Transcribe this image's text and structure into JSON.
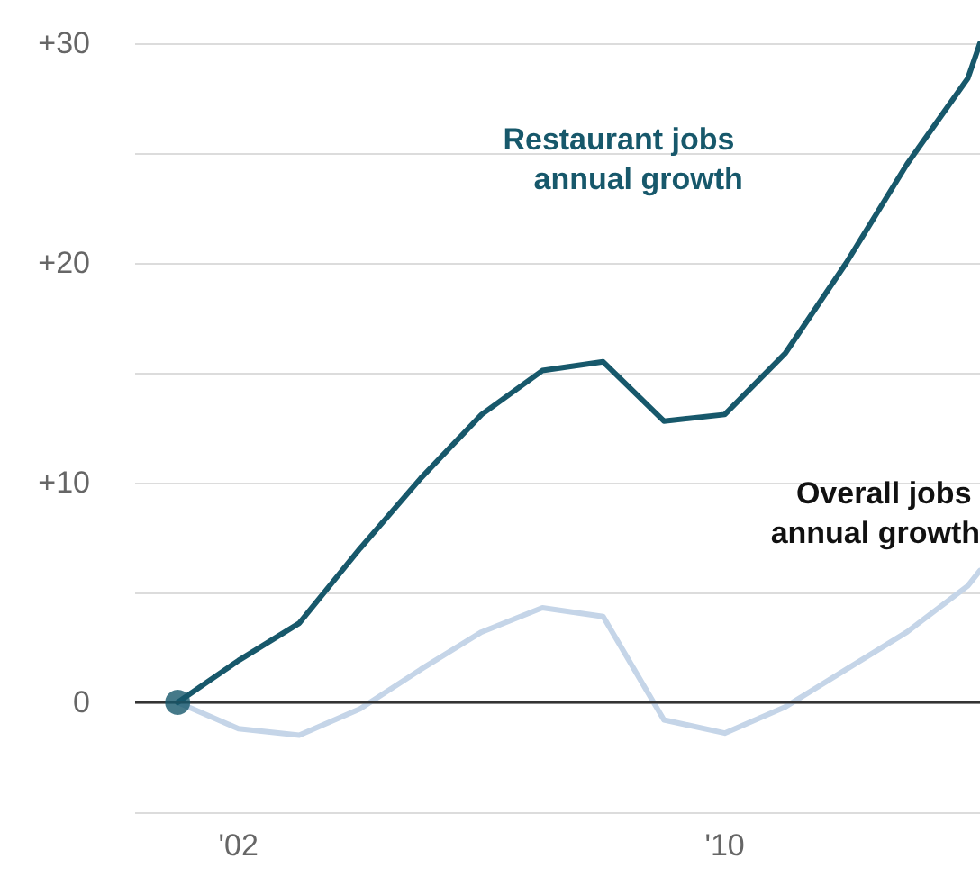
{
  "chart_data": {
    "type": "line",
    "x": [
      2001,
      2002,
      2003,
      2004,
      2005,
      2006,
      2007,
      2008,
      2009,
      2010,
      2011,
      2012,
      2013,
      2014,
      2014.2
    ],
    "series": [
      {
        "name": "Restaurant jobs annual growth",
        "color": "#17586b",
        "values": [
          0,
          1.9,
          3.6,
          7,
          10.2,
          13.1,
          15.1,
          15.5,
          12.8,
          13.1,
          15.9,
          20,
          24.5,
          28.4,
          30
        ]
      },
      {
        "name": "Overall jobs annual growth",
        "color": "#c5d5e8",
        "values": [
          0,
          -1.2,
          -1.5,
          -0.3,
          1.5,
          3.2,
          4.3,
          3.9,
          -0.8,
          -1.4,
          -0.2,
          1.5,
          3.2,
          5.3,
          6
        ]
      },
      {
        "type": "scatter",
        "color": "#17586b",
        "x": [
          2001
        ],
        "values": [
          0
        ]
      }
    ],
    "xlim": [
      2000.3,
      2014.2
    ],
    "xticks": [
      {
        "value": 2002,
        "label": "'02"
      },
      {
        "value": 2010,
        "label": "'10"
      }
    ],
    "ylim": [
      -5,
      30
    ],
    "yticks": [
      {
        "value": -5,
        "label": null
      },
      0,
      {
        "value": 5,
        "label": null
      },
      {
        "value": 10,
        "label": "+10"
      },
      {
        "value": 15,
        "label": null
      },
      {
        "value": 20,
        "label": "+20"
      },
      {
        "value": 25,
        "label": null
      },
      {
        "value": 30,
        "label": "+30"
      }
    ],
    "ref_lines": [
      {
        "axis": "y",
        "value": 0,
        "color": "#333333"
      }
    ],
    "grid": "y",
    "line_style": "solid",
    "legend": false
  }
}
